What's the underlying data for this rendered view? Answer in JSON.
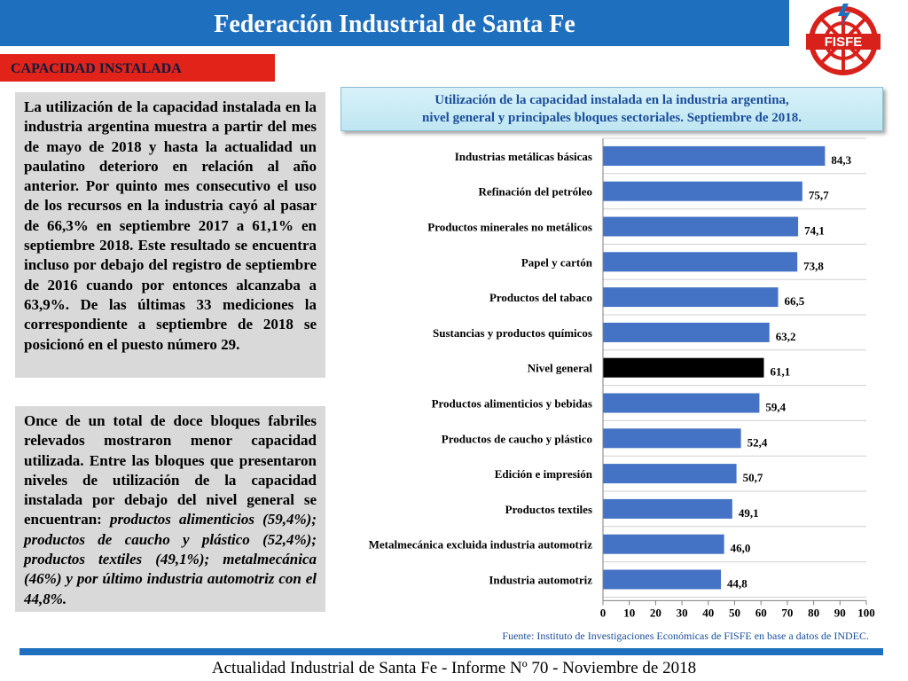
{
  "header": {
    "title": "Federación Industrial de Santa Fe",
    "logo_text": "FISFE",
    "accent_color": "#1f6fbf"
  },
  "section_tag": "CAPACIDAD INSTALADA",
  "text_box_1": "La utilización de la capacidad instalada en la industria argentina muestra a partir del mes de mayo de 2018 y hasta la actualidad un paulatino deterioro en relación al año anterior. Por quinto mes consecutivo el uso de los recursos en la industria cayó al pasar de 66,3% en septiembre 2017 a 61,1% en septiembre 2018. Este resultado se encuentra incluso por debajo del registro de septiembre de 2016 cuando por entonces alcanzaba a 63,9%. De las últimas 33 mediciones la correspondiente a septiembre de 2018 se posicionó en el puesto número 29.",
  "text_box_2": {
    "intro": "Once de un total de doce bloques fabriles relevados mostraron menor capacidad utilizada. Entre las bloques que presentaron niveles de utilización de la capacidad instalada por debajo del nivel general se encuentran: ",
    "italic": "productos alimenticios (59,4%); productos de caucho y plástico (52,4%); productos textiles (49,1%); metalmecánica (46%) y por último industria automotriz con el 44,8%."
  },
  "chart_title": {
    "line1": "Utilización de la capacidad instalada en la industria argentina,",
    "line2": "nivel general y principales bloques sectoriales. Septiembre de 2018."
  },
  "chart_data": {
    "type": "bar",
    "orientation": "horizontal",
    "categories": [
      "Industrias metálicas básicas",
      "Refinación del petróleo",
      "Productos minerales no metálicos",
      "Papel y cartón",
      "Productos del tabaco",
      "Sustancias y productos químicos",
      "Nivel general",
      "Productos alimenticios y bebidas",
      "Productos de caucho y plástico",
      "Edición e impresión",
      "Productos textiles",
      "Metalmecánica excluida industria automotriz",
      "Industria automotriz"
    ],
    "values": [
      84.3,
      75.7,
      74.1,
      73.8,
      66.5,
      63.2,
      61.1,
      59.4,
      52.4,
      50.7,
      49.1,
      46.0,
      44.8
    ],
    "value_labels": [
      "84,3",
      "75,7",
      "74,1",
      "73,8",
      "66,5",
      "63,2",
      "61,1",
      "59,4",
      "52,4",
      "50,7",
      "49,1",
      "46,0",
      "44,8"
    ],
    "highlight_category": "Nivel general",
    "xlim": [
      0,
      100
    ],
    "xticks": [
      0,
      10,
      20,
      30,
      40,
      50,
      60,
      70,
      80,
      90,
      100
    ],
    "grid": true,
    "bar_color": "#4472c4",
    "highlight_color": "#000000"
  },
  "source": "Fuente: Instituto de Investigaciones Económicas de FISFE en base a datos de INDEC.",
  "footer": "Actualidad Industrial de Santa Fe - Informe Nº 70 - Noviembre de 2018"
}
